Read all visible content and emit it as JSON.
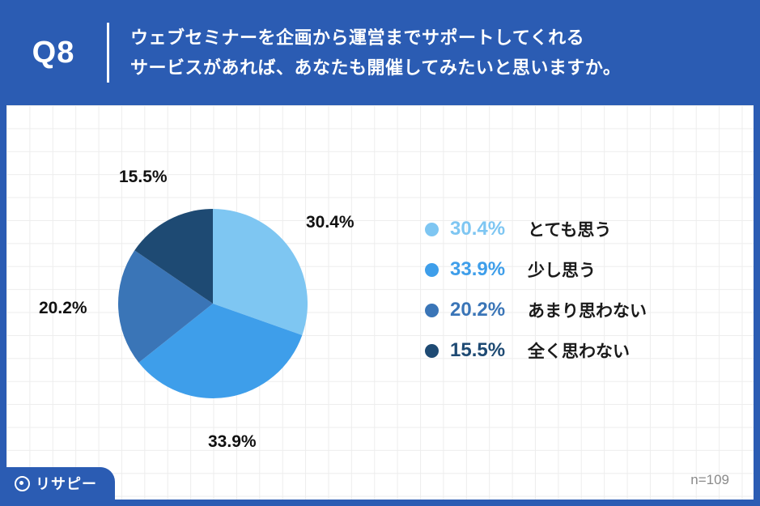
{
  "header": {
    "q_label": "Q8",
    "title_line1": "ウェブセミナーを企画から運営までサポートしてくれる",
    "title_line2": "サービスがあれば、あなたも開催してみたいと思いますか。"
  },
  "chart_data": {
    "type": "pie",
    "categories": [
      "とても思う",
      "少し思う",
      "あまり思わない",
      "全く思わない"
    ],
    "values": [
      30.4,
      33.9,
      20.2,
      15.5
    ],
    "labels": [
      "30.4%",
      "33.9%",
      "20.2%",
      "15.5%"
    ],
    "colors": [
      "#7EC6F2",
      "#3E9EEA",
      "#3A75B7",
      "#1E4A73"
    ],
    "start_angle_deg": 0,
    "direction": "clockwise",
    "legend_position": "right",
    "sample_size": "n=109"
  },
  "legend": {
    "items": [
      {
        "pct": "30.4%",
        "label": "とても思う"
      },
      {
        "pct": "33.9%",
        "label": "少し思う"
      },
      {
        "pct": "20.2%",
        "label": "あまり思わない"
      },
      {
        "pct": "15.5%",
        "label": "全く思わない"
      }
    ]
  },
  "footer": {
    "logo_text": "リサピー",
    "n_label": "n=109"
  },
  "colors": {
    "frame_blue": "#2B5CB3",
    "grid_gray": "#ededed",
    "legend_text": "#1a1a1a",
    "n_label_gray": "#8a8a8a"
  }
}
